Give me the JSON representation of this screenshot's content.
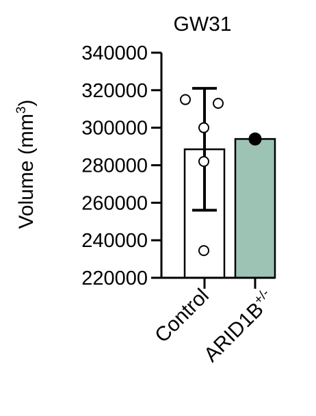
{
  "chart_data": {
    "type": "bar",
    "title": "GW31",
    "ylabel": {
      "main": "Volume (mm",
      "superscript": "3",
      "close": ")"
    },
    "ylim": [
      220000,
      340000
    ],
    "yticks": [
      220000,
      240000,
      260000,
      280000,
      300000,
      320000,
      340000
    ],
    "ytick_labels": [
      "220000",
      "240000",
      "260000",
      "280000",
      "300000",
      "320000",
      "340000"
    ],
    "categories": [
      {
        "label": "Control",
        "label_sup": "",
        "value": 288500,
        "error_low": 256000,
        "error_high": 321000,
        "fill": "#ffffff",
        "points": [
          315000,
          313000,
          300000,
          282000,
          234500
        ],
        "point_style": "open"
      },
      {
        "label": "ARID1B",
        "label_sup": "+/-",
        "value": 294000,
        "error_low": null,
        "error_high": null,
        "fill": "#9dc3b5",
        "points": [
          294000
        ],
        "point_style": "filled"
      }
    ],
    "grid": false,
    "legend": "none"
  }
}
